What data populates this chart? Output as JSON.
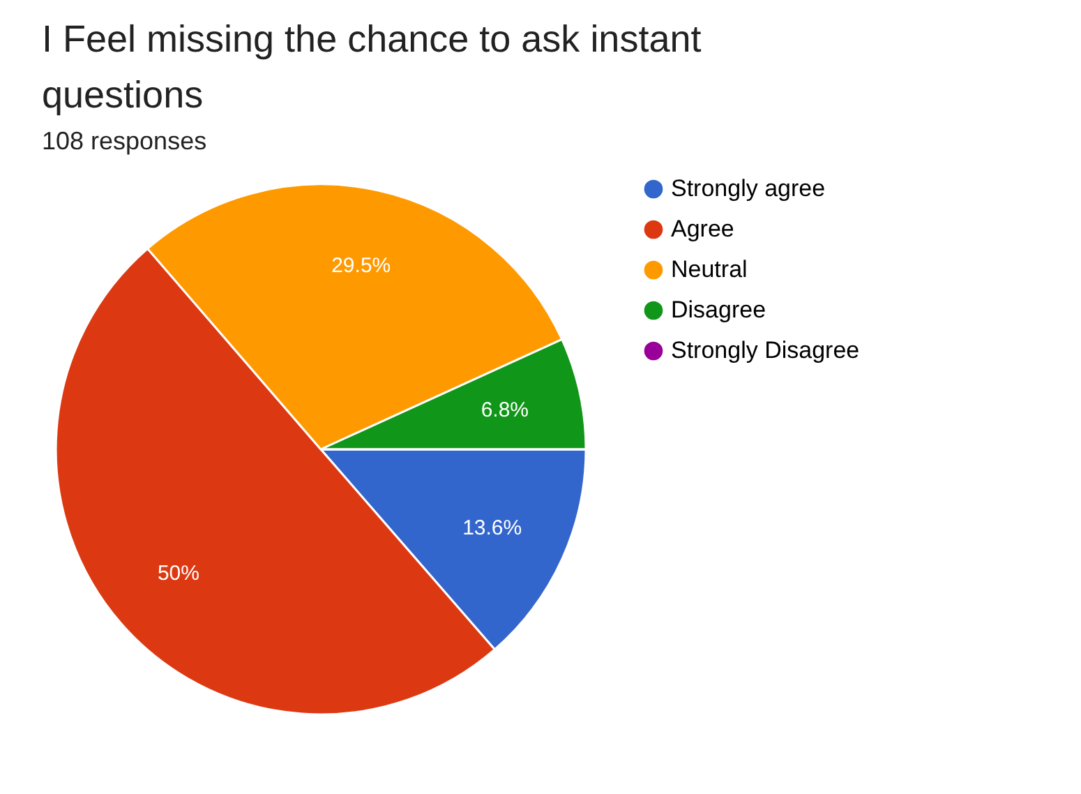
{
  "chart_data": {
    "type": "pie",
    "title": "I Feel missing the chance to ask instant questions",
    "subtitle": "108 responses",
    "categories": [
      "Strongly agree",
      "Agree",
      "Neutral",
      "Disagree",
      "Strongly Disagree"
    ],
    "values": [
      13.6,
      50,
      29.5,
      6.8,
      0
    ],
    "colors": [
      "#3366cc",
      "#dc3912",
      "#ff9900",
      "#109618",
      "#990099"
    ],
    "value_labels": [
      "13.6%",
      "50%",
      "29.5%",
      "6.8%",
      null
    ],
    "legend": "right"
  }
}
